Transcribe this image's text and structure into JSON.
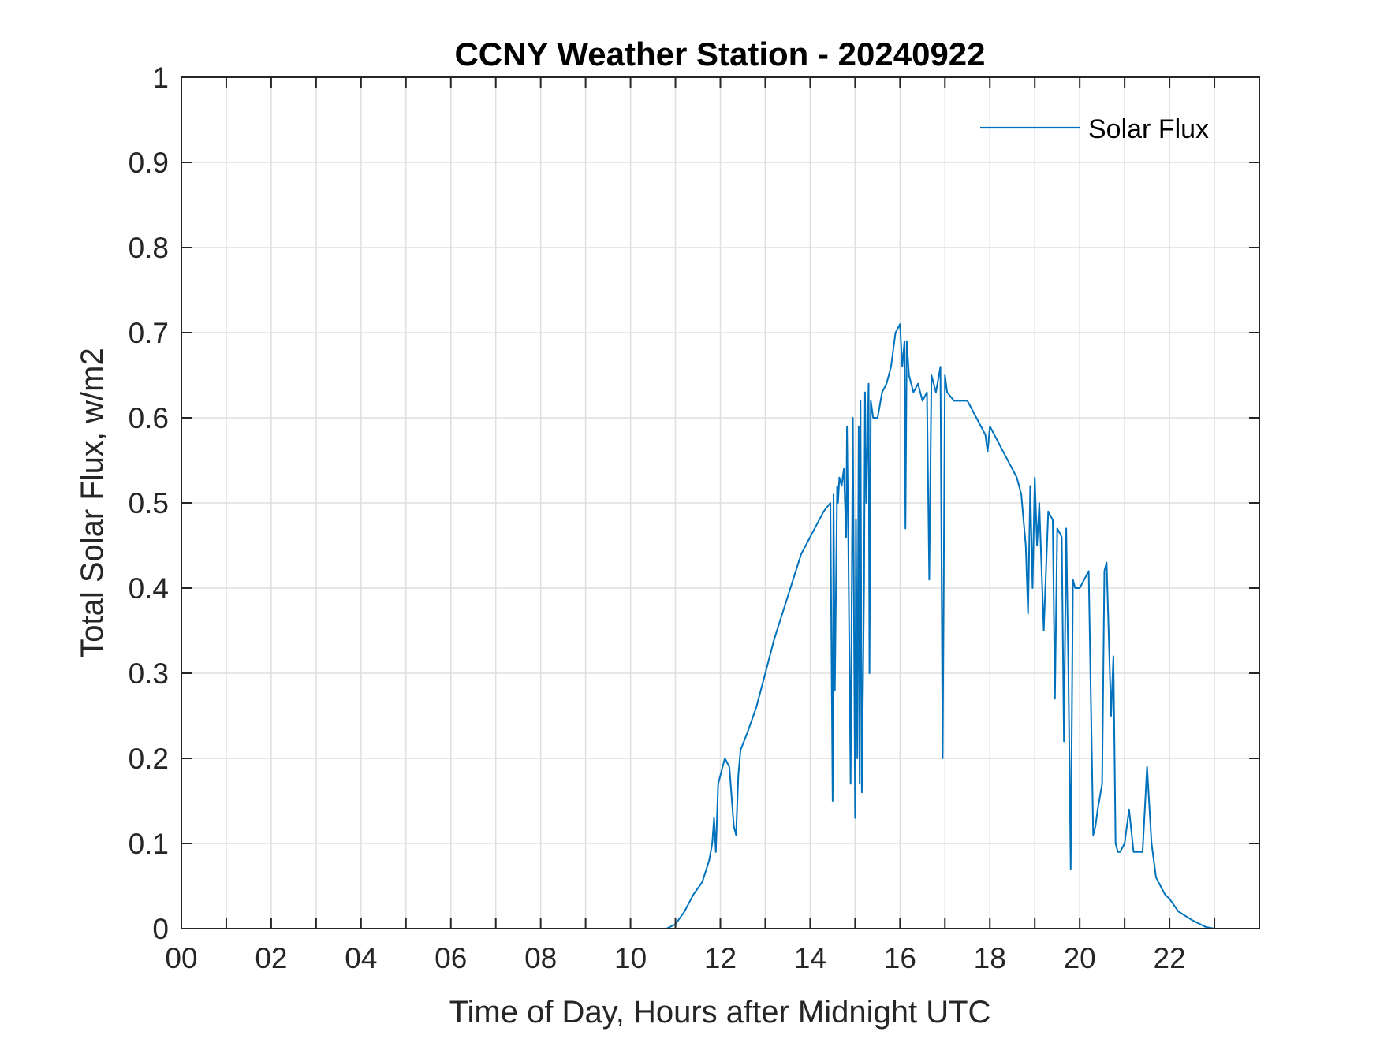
{
  "chart_data": {
    "type": "line",
    "title": "CCNY Weather Station - 20240922",
    "xlabel": "Time of Day, Hours after Midnight UTC",
    "ylabel": "Total Solar Flux, w/m2",
    "xlim": [
      0,
      24
    ],
    "ylim": [
      0,
      1
    ],
    "grid": true,
    "legend": {
      "position": "top-right",
      "entries": [
        "Solar Flux"
      ]
    },
    "x_ticks": [
      0,
      2,
      4,
      6,
      8,
      10,
      12,
      14,
      16,
      18,
      20,
      22
    ],
    "x_tick_labels": [
      "00",
      "02",
      "04",
      "06",
      "08",
      "10",
      "12",
      "14",
      "16",
      "18",
      "20",
      "22"
    ],
    "x_grid": [
      0,
      1,
      2,
      3,
      4,
      5,
      6,
      7,
      8,
      9,
      10,
      11,
      12,
      13,
      14,
      15,
      16,
      17,
      18,
      19,
      20,
      21,
      22,
      23
    ],
    "y_ticks": [
      0,
      0.1,
      0.2,
      0.3,
      0.4,
      0.5,
      0.6,
      0.7,
      0.8,
      0.9,
      1
    ],
    "y_tick_labels": [
      "0",
      "0.1",
      "0.2",
      "0.3",
      "0.4",
      "0.5",
      "0.6",
      "0.7",
      "0.8",
      "0.9",
      "1"
    ],
    "series": [
      {
        "name": "Solar Flux",
        "color": "#0072BD",
        "x": [
          0,
          10.8,
          11.0,
          11.2,
          11.4,
          11.6,
          11.75,
          11.82,
          11.86,
          11.9,
          11.95,
          12.0,
          12.1,
          12.2,
          12.3,
          12.35,
          12.4,
          12.45,
          12.6,
          12.8,
          13.0,
          13.2,
          13.5,
          13.8,
          14.0,
          14.3,
          14.45,
          14.5,
          14.52,
          14.55,
          14.6,
          14.62,
          14.65,
          14.7,
          14.75,
          14.8,
          14.82,
          14.85,
          14.9,
          14.95,
          15.0,
          15.02,
          15.05,
          15.08,
          15.1,
          15.12,
          15.15,
          15.2,
          15.22,
          15.25,
          15.3,
          15.32,
          15.35,
          15.4,
          15.5,
          15.6,
          15.7,
          15.8,
          15.9,
          16.0,
          16.05,
          16.1,
          16.12,
          16.15,
          16.2,
          16.3,
          16.4,
          16.5,
          16.6,
          16.65,
          16.7,
          16.8,
          16.9,
          16.95,
          17.0,
          17.05,
          17.2,
          17.5,
          17.7,
          17.9,
          17.95,
          18.0,
          18.2,
          18.5,
          18.6,
          18.7,
          18.8,
          18.85,
          18.9,
          18.95,
          19.0,
          19.05,
          19.1,
          19.2,
          19.3,
          19.4,
          19.45,
          19.5,
          19.6,
          19.65,
          19.7,
          19.75,
          19.8,
          19.85,
          19.9,
          20.0,
          20.1,
          20.2,
          20.3,
          20.35,
          20.4,
          20.5,
          20.55,
          20.6,
          20.7,
          20.75,
          20.8,
          20.85,
          20.9,
          21.0,
          21.1,
          21.2,
          21.3,
          21.4,
          21.5,
          21.6,
          21.7,
          21.9,
          22.0,
          22.2,
          22.5,
          22.8,
          23.0,
          24.0
        ],
        "values": [
          0,
          0,
          0.005,
          0.02,
          0.04,
          0.055,
          0.08,
          0.1,
          0.13,
          0.09,
          0.17,
          0.18,
          0.2,
          0.19,
          0.12,
          0.11,
          0.18,
          0.21,
          0.23,
          0.26,
          0.3,
          0.34,
          0.39,
          0.44,
          0.46,
          0.49,
          0.5,
          0.15,
          0.51,
          0.28,
          0.52,
          0.5,
          0.53,
          0.52,
          0.54,
          0.46,
          0.59,
          0.45,
          0.17,
          0.6,
          0.13,
          0.48,
          0.2,
          0.59,
          0.17,
          0.62,
          0.16,
          0.41,
          0.63,
          0.5,
          0.64,
          0.3,
          0.62,
          0.6,
          0.6,
          0.63,
          0.64,
          0.66,
          0.7,
          0.71,
          0.66,
          0.69,
          0.47,
          0.69,
          0.65,
          0.63,
          0.64,
          0.62,
          0.63,
          0.41,
          0.65,
          0.63,
          0.66,
          0.2,
          0.65,
          0.63,
          0.62,
          0.62,
          0.6,
          0.58,
          0.56,
          0.59,
          0.57,
          0.54,
          0.53,
          0.51,
          0.45,
          0.37,
          0.52,
          0.4,
          0.53,
          0.45,
          0.5,
          0.35,
          0.49,
          0.48,
          0.27,
          0.47,
          0.46,
          0.22,
          0.47,
          0.3,
          0.07,
          0.41,
          0.4,
          0.4,
          0.41,
          0.42,
          0.11,
          0.12,
          0.14,
          0.17,
          0.42,
          0.43,
          0.25,
          0.32,
          0.1,
          0.09,
          0.09,
          0.1,
          0.14,
          0.09,
          0.09,
          0.09,
          0.19,
          0.1,
          0.06,
          0.04,
          0.035,
          0.02,
          0.01,
          0.002,
          0,
          0
        ]
      }
    ]
  }
}
